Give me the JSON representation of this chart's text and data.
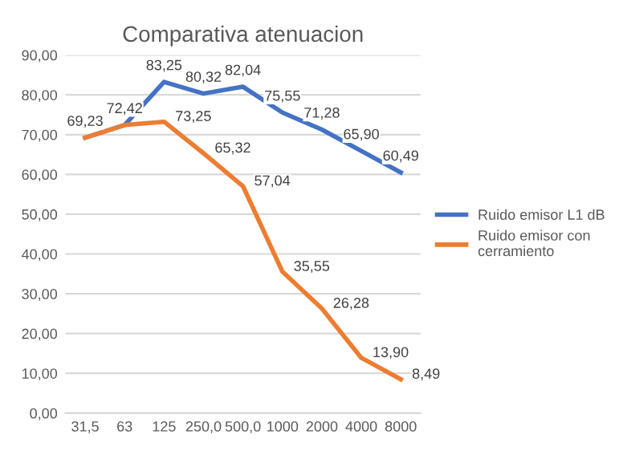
{
  "chart_data": {
    "type": "line",
    "title": "Comparativa atenuacion",
    "categories": [
      "31,5",
      "63",
      "125",
      "250,0",
      "500,0",
      "1000",
      "2000",
      "4000",
      "8000"
    ],
    "series": [
      {
        "name": "Ruido emisor L1 dB",
        "color": "#4472c4",
        "values": [
          69.23,
          72.42,
          83.25,
          80.32,
          82.04,
          75.55,
          71.28,
          65.9,
          60.49
        ],
        "value_labels": [
          "69,23",
          "72,42",
          "83,25",
          "80,32",
          "82,04",
          "75,55",
          "71,28",
          "65,90",
          "60,49"
        ]
      },
      {
        "name": "Ruido emisor con cerramiento",
        "color": "#ed7d31",
        "values": [
          69.23,
          72.42,
          73.25,
          65.32,
          57.04,
          35.55,
          26.28,
          13.9,
          8.49
        ],
        "value_labels": [
          null,
          null,
          "73,25",
          "65,32",
          "57,04",
          "35,55",
          "26,28",
          "13,90",
          "8,49"
        ]
      }
    ],
    "ylim": [
      0,
      90
    ],
    "yticks": [
      {
        "value": 0,
        "label": "0,00"
      },
      {
        "value": 10,
        "label": "10,00"
      },
      {
        "value": 20,
        "label": "20,00"
      },
      {
        "value": 30,
        "label": "30,00"
      },
      {
        "value": 40,
        "label": "40,00"
      },
      {
        "value": 50,
        "label": "50,00"
      },
      {
        "value": 60,
        "label": "60,00"
      },
      {
        "value": 70,
        "label": "70,00"
      },
      {
        "value": 80,
        "label": "80,00"
      },
      {
        "value": 90,
        "label": "90,00"
      }
    ],
    "grid": "y",
    "legend": "right",
    "marker": "none",
    "line_style": "solid"
  }
}
